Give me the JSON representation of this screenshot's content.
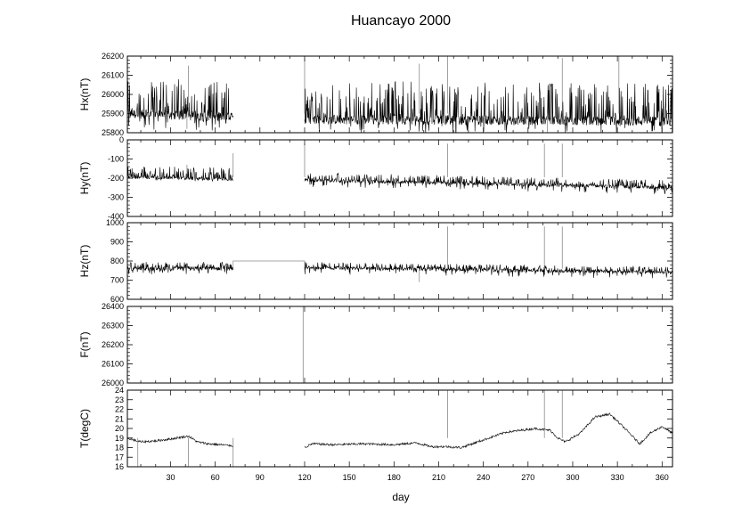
{
  "title": "Huancayo 2000",
  "xlabel": "day",
  "colors": {
    "frame": "#000000",
    "trace": "#000000",
    "gap_trace": "#8a8a8a"
  },
  "chart_data": [
    {
      "type": "line",
      "name": "Hx",
      "ylabel": "Hx(nT)",
      "xlim": [
        1,
        367
      ],
      "ylim": [
        25800,
        26200
      ],
      "yticks": [
        25800,
        25900,
        26000,
        26100,
        26200
      ],
      "xticks": [
        30,
        60,
        90,
        120,
        150,
        180,
        210,
        240,
        270,
        300,
        330,
        360
      ],
      "grid": false,
      "segments": [
        {
          "x_range": [
            1,
            72
          ],
          "baseline_start": 25900,
          "baseline_end": 25880,
          "noise": 25,
          "spike_up": 190,
          "spike_down": 80
        },
        {
          "x_range": [
            120,
            367
          ],
          "baseline_start": 25870,
          "baseline_end": 25860,
          "noise": 25,
          "spike_up": 200,
          "spike_down": 70
        }
      ],
      "spikes": [
        {
          "x": 41,
          "y": 25820
        },
        {
          "x": 42,
          "y": 26150
        },
        {
          "x": 120,
          "y": 26190
        },
        {
          "x": 197,
          "y": 26160
        },
        {
          "x": 216,
          "y": 26200
        },
        {
          "x": 283,
          "y": 25800
        },
        {
          "x": 293,
          "y": 26190
        },
        {
          "x": 331,
          "y": 26200
        }
      ]
    },
    {
      "type": "line",
      "name": "Hy",
      "ylabel": "Hy(nT)",
      "xlim": [
        1,
        367
      ],
      "ylim": [
        -400,
        0
      ],
      "yticks": [
        -400,
        -300,
        -200,
        -100,
        0
      ],
      "xticks": [
        30,
        60,
        90,
        120,
        150,
        180,
        210,
        240,
        270,
        300,
        330,
        360
      ],
      "grid": false,
      "segments": [
        {
          "x_range": [
            1,
            72
          ],
          "baseline_start": -195,
          "baseline_end": -205,
          "noise": 8,
          "spike_up": 60,
          "spike_down": 15
        },
        {
          "x_range": [
            120,
            367
          ],
          "baseline_start": -210,
          "baseline_end": -250,
          "noise": 8,
          "spike_up": 40,
          "spike_down": 35
        }
      ],
      "spikes": [
        {
          "x": 41,
          "y": -130
        },
        {
          "x": 72,
          "y": -70
        },
        {
          "x": 120,
          "y": -20
        },
        {
          "x": 216,
          "y": -20
        },
        {
          "x": 281,
          "y": -20
        },
        {
          "x": 293,
          "y": -20
        }
      ]
    },
    {
      "type": "line",
      "name": "Hz",
      "ylabel": "Hz(nT)",
      "xlim": [
        1,
        367
      ],
      "ylim": [
        600,
        1000
      ],
      "yticks": [
        600,
        700,
        800,
        900,
        1000
      ],
      "xticks": [
        30,
        60,
        90,
        120,
        150,
        180,
        210,
        240,
        270,
        300,
        330,
        360
      ],
      "grid": false,
      "segments": [
        {
          "x_range": [
            1,
            72
          ],
          "baseline_start": 760,
          "baseline_end": 760,
          "noise": 10,
          "spike_up": 35,
          "spike_down": 30
        },
        {
          "x_range": [
            120,
            367
          ],
          "baseline_start": 765,
          "baseline_end": 740,
          "noise": 8,
          "spike_up": 30,
          "spike_down": 35
        }
      ],
      "gap_value": 800,
      "spikes": [
        {
          "x": 197,
          "y": 690
        },
        {
          "x": 216,
          "y": 980
        },
        {
          "x": 281,
          "y": 980
        },
        {
          "x": 293,
          "y": 980
        }
      ]
    },
    {
      "type": "line",
      "name": "F",
      "ylabel": "F(nT)",
      "xlim": [
        1,
        367
      ],
      "ylim": [
        26000,
        26400
      ],
      "yticks": [
        26000,
        26100,
        26200,
        26300,
        26400
      ],
      "xticks": [
        30,
        60,
        90,
        120,
        150,
        180,
        210,
        240,
        270,
        300,
        330,
        360
      ],
      "grid": false,
      "segments": [],
      "spikes": [
        {
          "x": 119,
          "y": 26400
        }
      ]
    },
    {
      "type": "line",
      "name": "T",
      "ylabel": "T(degC)",
      "xlim": [
        1,
        367
      ],
      "ylim": [
        16,
        24
      ],
      "yticks": [
        16,
        17,
        18,
        19,
        20,
        21,
        22,
        23,
        24
      ],
      "xticks": [
        30,
        60,
        90,
        120,
        150,
        180,
        210,
        240,
        270,
        300,
        330,
        360
      ],
      "xticklabels": [
        "30",
        "60",
        "90",
        "120",
        "150",
        "180",
        "210",
        "240",
        "270",
        "300",
        "330",
        "360"
      ],
      "grid": false,
      "series": [
        {
          "x": [
            1,
            5,
            10,
            20,
            30,
            38,
            42,
            48,
            55,
            72
          ],
          "y": [
            19.0,
            18.8,
            18.6,
            18.7,
            18.9,
            19.1,
            19.2,
            18.6,
            18.4,
            18.2
          ]
        },
        {
          "x": [
            120,
            125,
            140,
            160,
            180,
            195,
            205,
            215,
            225,
            240,
            255,
            265,
            275,
            285,
            290,
            295,
            305,
            315,
            325,
            335,
            345,
            352,
            360,
            367
          ],
          "y": [
            18.0,
            18.4,
            18.3,
            18.4,
            18.3,
            18.5,
            18.1,
            18.1,
            18.0,
            18.8,
            19.6,
            19.8,
            20.0,
            19.8,
            19.0,
            18.6,
            19.5,
            21.2,
            21.5,
            20.0,
            18.4,
            19.5,
            20.2,
            19.5
          ]
        }
      ],
      "noise": 0.12,
      "spikes": [
        {
          "x": 8,
          "y": 16
        },
        {
          "x": 42,
          "y": 16
        },
        {
          "x": 72,
          "y": 16
        },
        {
          "x": 216,
          "y": 24
        },
        {
          "x": 281,
          "y": 24
        },
        {
          "x": 293,
          "y": 24
        }
      ]
    }
  ]
}
